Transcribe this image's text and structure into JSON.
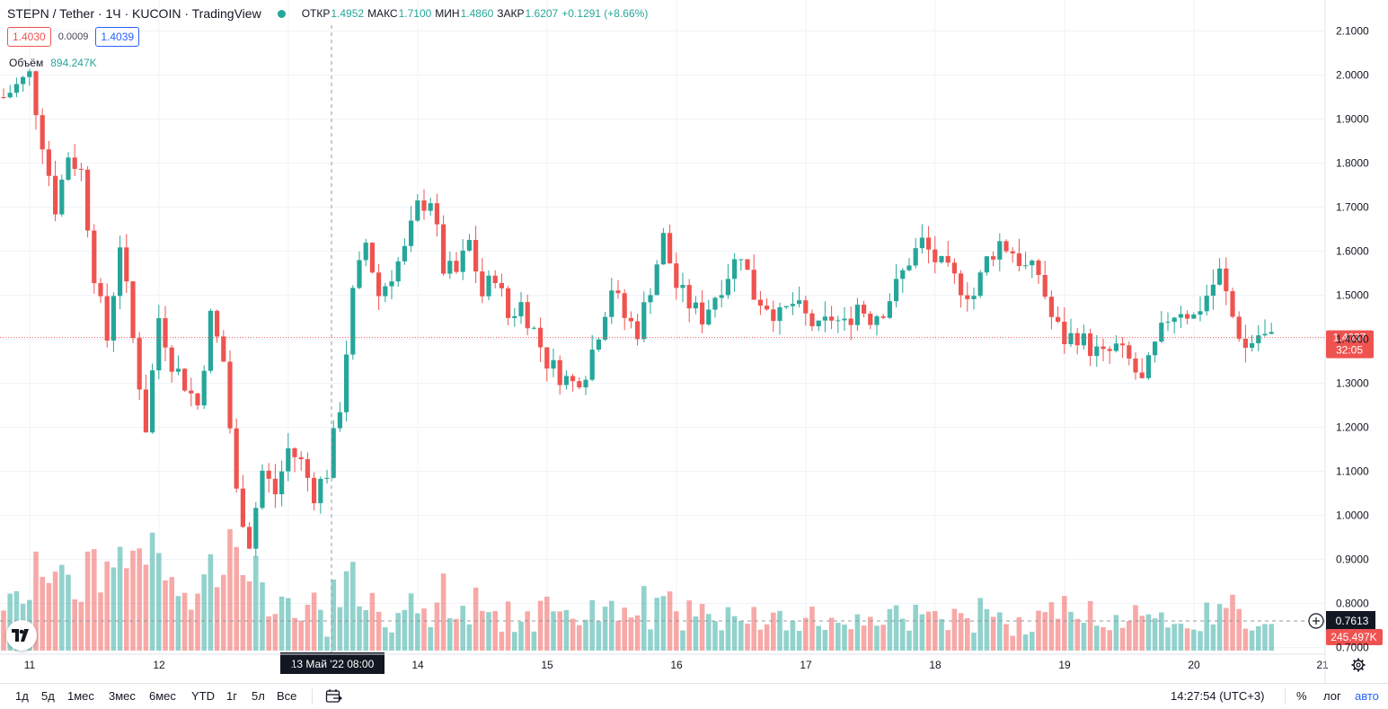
{
  "header": {
    "title": "STEPN / Tether · 1Ч · KUCOIN · TradingView",
    "ohlc": [
      {
        "k": "ОТКР",
        "v": "1.4952"
      },
      {
        "k": "МАКС",
        "v": "1.7100"
      },
      {
        "k": "МИН",
        "v": "1.4860"
      },
      {
        "k": "ЗАКР",
        "v": "1.6207"
      },
      {
        "k": "",
        "v": "+0.1291 (+8.66%)"
      }
    ]
  },
  "prices": {
    "bid": "1.4030",
    "spread": "0.0009",
    "ask": "1.4039"
  },
  "volume_legend": {
    "label": "Объём",
    "value": "894.247K"
  },
  "axis": {
    "price_ticks": [
      "2.1000",
      "2.0000",
      "1.9000",
      "1.8000",
      "1.7000",
      "1.6000",
      "1.5000",
      "1.4000",
      "1.3000",
      "1.2000",
      "1.1000",
      "1.0000",
      "0.9000",
      "0.8000",
      "0.7000"
    ],
    "date_ticks": [
      "11",
      "12",
      "13",
      "14",
      "15",
      "16",
      "17",
      "18",
      "19",
      "20",
      "21"
    ],
    "crosshair_date": "13 Май '22   08:00"
  },
  "labels": {
    "last_price": "1.4037",
    "countdown": "32:05",
    "crosshair_price": "0.7613",
    "last_volume": "245.497K"
  },
  "toolbar": {
    "ranges": [
      "1д",
      "5д",
      "1мес",
      "3мес",
      "6мес",
      "YTD",
      "1г",
      "5л",
      "Все"
    ],
    "time": "14:27:54 (UTC+3)",
    "percent": "%",
    "log": "лог",
    "auto": "авто"
  },
  "colors": {
    "up": "#26a69a",
    "down": "#ef5350",
    "grid": "#f0f3fa"
  },
  "chart_data": {
    "type": "candlestick",
    "timeframe": "1h",
    "ylim": [
      0.7,
      2.12
    ],
    "x_ticks": [
      "11",
      "12",
      "13",
      "14",
      "15",
      "16",
      "17",
      "18",
      "19",
      "20",
      "21"
    ],
    "close_path": [
      [
        0,
        1.95
      ],
      [
        4,
        2.0
      ],
      [
        6,
        1.85
      ],
      [
        8,
        1.7
      ],
      [
        10,
        1.82
      ],
      [
        12,
        1.78
      ],
      [
        14,
        1.55
      ],
      [
        16,
        1.4
      ],
      [
        18,
        1.62
      ],
      [
        20,
        1.4
      ],
      [
        22,
        1.2
      ],
      [
        24,
        1.45
      ],
      [
        26,
        1.35
      ],
      [
        28,
        1.3
      ],
      [
        30,
        1.25
      ],
      [
        32,
        1.45
      ],
      [
        34,
        1.35
      ],
      [
        36,
        1.05
      ],
      [
        38,
        0.94
      ],
      [
        40,
        1.1
      ],
      [
        42,
        1.05
      ],
      [
        44,
        1.15
      ],
      [
        46,
        1.12
      ],
      [
        48,
        1.05
      ],
      [
        50,
        1.1
      ],
      [
        52,
        1.25
      ],
      [
        54,
        1.5
      ],
      [
        56,
        1.62
      ],
      [
        58,
        1.5
      ],
      [
        60,
        1.55
      ],
      [
        62,
        1.6
      ],
      [
        64,
        1.7
      ],
      [
        66,
        1.72
      ],
      [
        68,
        1.56
      ],
      [
        70,
        1.55
      ],
      [
        72,
        1.62
      ],
      [
        74,
        1.5
      ],
      [
        76,
        1.55
      ],
      [
        78,
        1.45
      ],
      [
        80,
        1.48
      ],
      [
        82,
        1.42
      ],
      [
        84,
        1.35
      ],
      [
        86,
        1.32
      ],
      [
        88,
        1.3
      ],
      [
        90,
        1.33
      ],
      [
        92,
        1.42
      ],
      [
        94,
        1.52
      ],
      [
        96,
        1.45
      ],
      [
        98,
        1.42
      ],
      [
        100,
        1.52
      ],
      [
        102,
        1.63
      ],
      [
        104,
        1.52
      ],
      [
        106,
        1.48
      ],
      [
        108,
        1.45
      ],
      [
        110,
        1.5
      ],
      [
        112,
        1.55
      ],
      [
        114,
        1.6
      ],
      [
        116,
        1.5
      ],
      [
        118,
        1.48
      ],
      [
        120,
        1.45
      ],
      [
        122,
        1.48
      ],
      [
        124,
        1.45
      ],
      [
        126,
        1.42
      ],
      [
        128,
        1.45
      ],
      [
        130,
        1.43
      ],
      [
        132,
        1.48
      ],
      [
        134,
        1.45
      ],
      [
        136,
        1.47
      ],
      [
        138,
        1.52
      ],
      [
        140,
        1.58
      ],
      [
        142,
        1.62
      ],
      [
        144,
        1.58
      ],
      [
        146,
        1.55
      ],
      [
        148,
        1.52
      ],
      [
        150,
        1.5
      ],
      [
        152,
        1.58
      ],
      [
        154,
        1.62
      ],
      [
        156,
        1.6
      ],
      [
        158,
        1.56
      ],
      [
        160,
        1.55
      ],
      [
        162,
        1.45
      ],
      [
        164,
        1.4
      ],
      [
        166,
        1.41
      ],
      [
        168,
        1.38
      ],
      [
        170,
        1.36
      ],
      [
        172,
        1.38
      ],
      [
        174,
        1.35
      ],
      [
        176,
        1.3
      ],
      [
        178,
        1.38
      ],
      [
        180,
        1.45
      ],
      [
        182,
        1.47
      ],
      [
        184,
        1.45
      ],
      [
        186,
        1.5
      ],
      [
        188,
        1.55
      ],
      [
        190,
        1.45
      ],
      [
        192,
        1.38
      ],
      [
        194,
        1.41
      ],
      [
        196,
        1.4
      ]
    ],
    "candles": 197,
    "volume": {
      "last": "245.497K",
      "max_visible": "894.247K"
    },
    "last_price": 1.4037
  }
}
